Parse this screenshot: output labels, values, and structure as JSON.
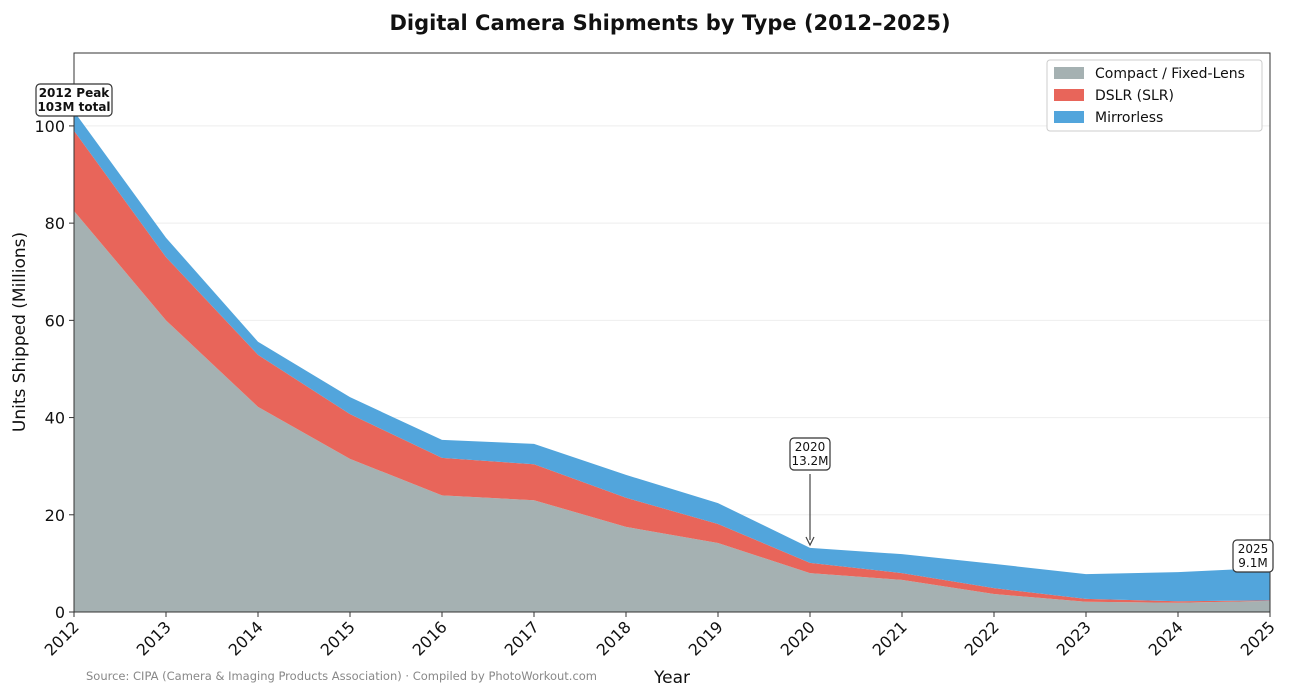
{
  "chart_data": {
    "type": "area",
    "stacked": true,
    "title": "Digital Camera Shipments by Type (2012–2025)",
    "xlabel": "Year",
    "ylabel": "Units Shipped (Millions)",
    "ylim": [
      0,
      115
    ],
    "yticks": [
      0,
      20,
      40,
      60,
      80,
      100
    ],
    "grid": true,
    "legend_position": "top-right",
    "x": [
      2012,
      2013,
      2014,
      2015,
      2016,
      2017,
      2018,
      2019,
      2020,
      2021,
      2022,
      2023,
      2024,
      2025
    ],
    "series": [
      {
        "name": "Compact / Fixed-Lens",
        "color": "#a5b1b2",
        "values": [
          82.5,
          60,
          42.2,
          31.5,
          24,
          23,
          17.5,
          14.2,
          8.0,
          6.6,
          3.7,
          2.1,
          1.9,
          2.3
        ]
      },
      {
        "name": "DSLR (SLR)",
        "color": "#e8655a",
        "values": [
          16.5,
          13,
          10.7,
          9.2,
          7.7,
          7.4,
          6.0,
          3.9,
          2.1,
          1.4,
          1.2,
          0.6,
          0.3,
          0.1
        ]
      },
      {
        "name": "Mirrorless",
        "color": "#52a5dc",
        "values": [
          4.0,
          4.0,
          2.7,
          3.5,
          3.7,
          4.2,
          4.7,
          4.3,
          3.1,
          3.9,
          5.0,
          5.1,
          6.0,
          6.7
        ]
      }
    ],
    "annotations": [
      {
        "x": 2012,
        "line1": "2012 Peak",
        "line2": "103M total"
      },
      {
        "x": 2020,
        "line1": "2020",
        "line2": "13.2M"
      },
      {
        "x": 2025,
        "line1": "2025",
        "line2": "9.1M"
      }
    ],
    "source": "Source: CIPA (Camera & Imaging Products Association) · Compiled by PhotoWorkout.com"
  }
}
